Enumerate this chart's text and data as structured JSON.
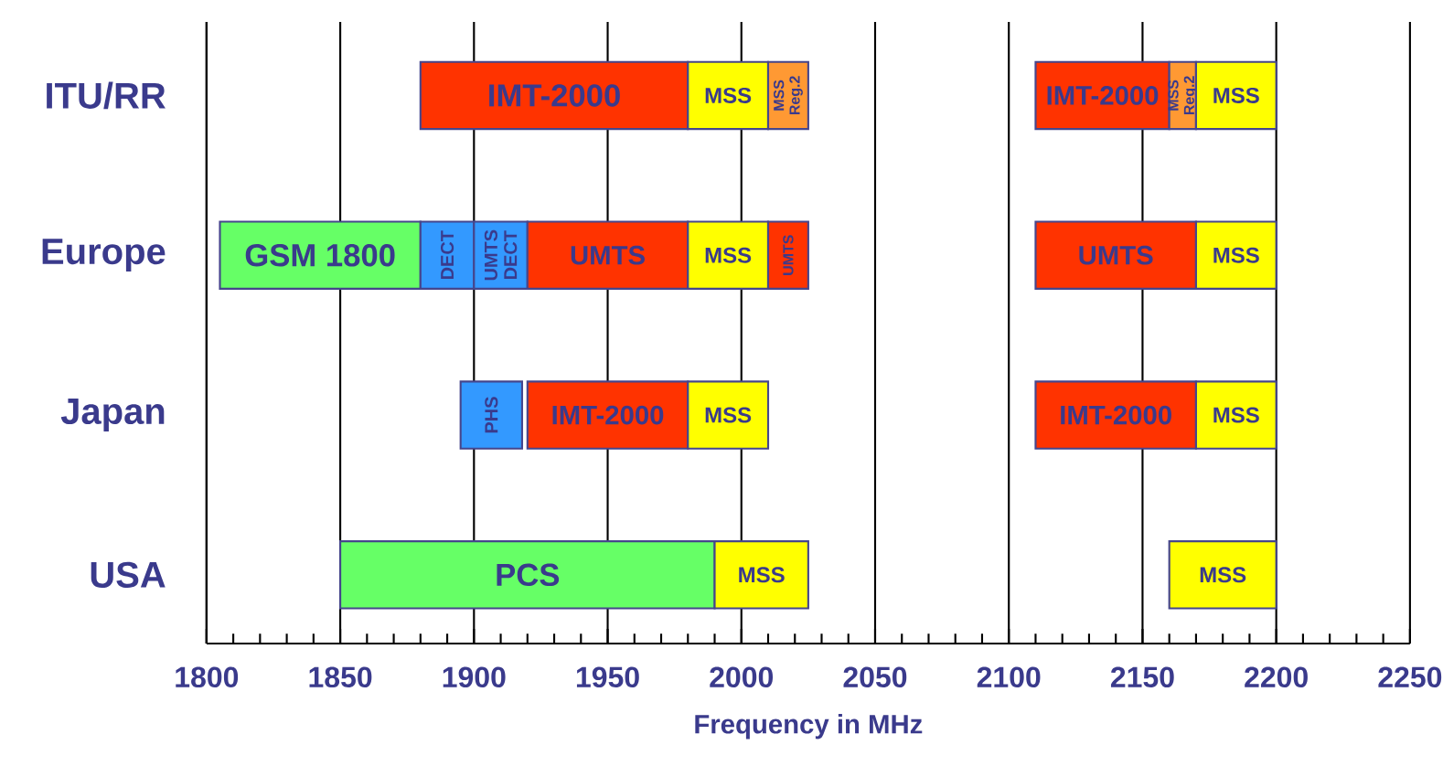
{
  "chart_data": {
    "type": "bar",
    "orientation": "horizontal",
    "xlabel": "Frequency in MHz",
    "categories": [
      "ITU/RR",
      "Europe",
      "Japan",
      "USA"
    ],
    "xlim": [
      1800,
      2250
    ],
    "xticks": [
      1800,
      1850,
      1900,
      1950,
      2000,
      2050,
      2100,
      2150,
      2200,
      2250
    ],
    "grid": "x",
    "series": [
      {
        "name": "GSM 1800",
        "color": "#66ff66",
        "values": [
          null,
          75,
          null,
          null
        ],
        "base": [
          null,
          1805,
          null,
          null
        ]
      },
      {
        "name": "DECT",
        "color": "#3399ff",
        "values": [
          null,
          20,
          null,
          null
        ],
        "base": [
          null,
          1880,
          null,
          null
        ]
      },
      {
        "name": "UMTS DECT",
        "color": "#3399ff",
        "values": [
          null,
          20,
          null,
          null
        ],
        "base": [
          null,
          1900,
          null,
          null
        ]
      },
      {
        "name": "PHS",
        "color": "#3399ff",
        "values": [
          null,
          null,
          23,
          null
        ],
        "base": [
          null,
          null,
          1895,
          null
        ]
      },
      {
        "name": "PCS",
        "color": "#66ff66",
        "values": [
          null,
          null,
          null,
          140
        ],
        "base": [
          null,
          null,
          null,
          1850
        ]
      },
      {
        "name": "IMT-2000",
        "color": "#ff3300",
        "values": [
          100,
          null,
          60,
          null
        ],
        "base": [
          1880,
          null,
          1920,
          null
        ]
      },
      {
        "name": "UMTS",
        "color": "#ff3300",
        "values": [
          null,
          60,
          null,
          null
        ],
        "base": [
          null,
          1920,
          null,
          null
        ]
      },
      {
        "name": "MSS",
        "color": "#ffff00",
        "values": [
          30,
          30,
          30,
          35
        ],
        "base": [
          1980,
          1980,
          1980,
          1990
        ]
      },
      {
        "name": "MSS Reg.2",
        "color": "#ff9933",
        "values": [
          15,
          null,
          null,
          null
        ],
        "base": [
          2010,
          null,
          null,
          null
        ]
      },
      {
        "name": "UMTS",
        "color": "#ff3300",
        "values": [
          null,
          15,
          null,
          null
        ],
        "base": [
          null,
          2010,
          null,
          null
        ]
      },
      {
        "name": "IMT-2000",
        "color": "#ff3300",
        "values": [
          50,
          null,
          60,
          null
        ],
        "base": [
          2110,
          null,
          2110,
          null
        ]
      },
      {
        "name": "UMTS",
        "color": "#ff3300",
        "values": [
          null,
          60,
          null,
          null
        ],
        "base": [
          null,
          2110,
          null,
          null
        ]
      },
      {
        "name": "MSS Reg.2",
        "color": "#ff9933",
        "values": [
          10,
          null,
          null,
          null
        ],
        "base": [
          2160,
          null,
          null,
          null
        ]
      },
      {
        "name": "MSS",
        "color": "#ffff00",
        "values": [
          30,
          30,
          30,
          40
        ],
        "base": [
          2170,
          2170,
          2170,
          2160
        ]
      }
    ]
  }
}
